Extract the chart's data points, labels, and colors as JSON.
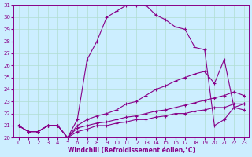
{
  "xlabel": "Windchill (Refroidissement éolien,°C)",
  "bg_color": "#cceeff",
  "grid_color": "#b0ddd0",
  "line_color": "#880088",
  "xlim": [
    -0.5,
    23.5
  ],
  "ylim": [
    20,
    31
  ],
  "yticks": [
    20,
    21,
    22,
    23,
    24,
    25,
    26,
    27,
    28,
    29,
    30,
    31
  ],
  "xticks": [
    0,
    1,
    2,
    3,
    4,
    5,
    6,
    7,
    8,
    9,
    10,
    11,
    12,
    13,
    14,
    15,
    16,
    17,
    18,
    19,
    20,
    21,
    22,
    23
  ],
  "lines": [
    {
      "x": [
        0,
        1,
        2,
        3,
        4,
        5,
        6,
        7,
        8,
        9,
        10,
        11,
        12,
        13,
        14,
        15,
        16,
        17,
        18,
        19,
        20,
        21,
        22,
        23
      ],
      "y": [
        21.0,
        20.5,
        20.5,
        21.0,
        21.0,
        20.0,
        21.5,
        26.5,
        28.0,
        30.0,
        30.5,
        31.0,
        31.0,
        31.0,
        30.2,
        29.8,
        29.2,
        29.0,
        27.5,
        27.3,
        21.0,
        21.5,
        22.5,
        22.8
      ]
    },
    {
      "x": [
        0,
        1,
        2,
        3,
        4,
        5,
        6,
        7,
        8,
        9,
        10,
        11,
        12,
        13,
        14,
        15,
        16,
        17,
        18,
        19,
        20,
        21,
        22,
        23
      ],
      "y": [
        21.0,
        20.5,
        20.5,
        21.0,
        21.0,
        20.0,
        21.0,
        21.5,
        21.8,
        22.0,
        22.3,
        22.8,
        23.0,
        23.5,
        24.0,
        24.3,
        24.7,
        25.0,
        25.3,
        25.5,
        24.5,
        26.5,
        22.5,
        22.3
      ]
    },
    {
      "x": [
        0,
        1,
        2,
        3,
        4,
        5,
        6,
        7,
        8,
        9,
        10,
        11,
        12,
        13,
        14,
        15,
        16,
        17,
        18,
        19,
        20,
        21,
        22,
        23
      ],
      "y": [
        21.0,
        20.5,
        20.5,
        21.0,
        21.0,
        20.0,
        20.8,
        21.0,
        21.2,
        21.3,
        21.5,
        21.7,
        21.8,
        22.0,
        22.2,
        22.3,
        22.5,
        22.7,
        22.9,
        23.1,
        23.3,
        23.5,
        23.8,
        23.5
      ]
    },
    {
      "x": [
        0,
        1,
        2,
        3,
        4,
        5,
        6,
        7,
        8,
        9,
        10,
        11,
        12,
        13,
        14,
        15,
        16,
        17,
        18,
        19,
        20,
        21,
        22,
        23
      ],
      "y": [
        21.0,
        20.5,
        20.5,
        21.0,
        21.0,
        20.0,
        20.5,
        20.7,
        21.0,
        21.0,
        21.2,
        21.3,
        21.5,
        21.5,
        21.7,
        21.8,
        22.0,
        22.0,
        22.2,
        22.3,
        22.5,
        22.5,
        22.8,
        22.8
      ]
    }
  ]
}
